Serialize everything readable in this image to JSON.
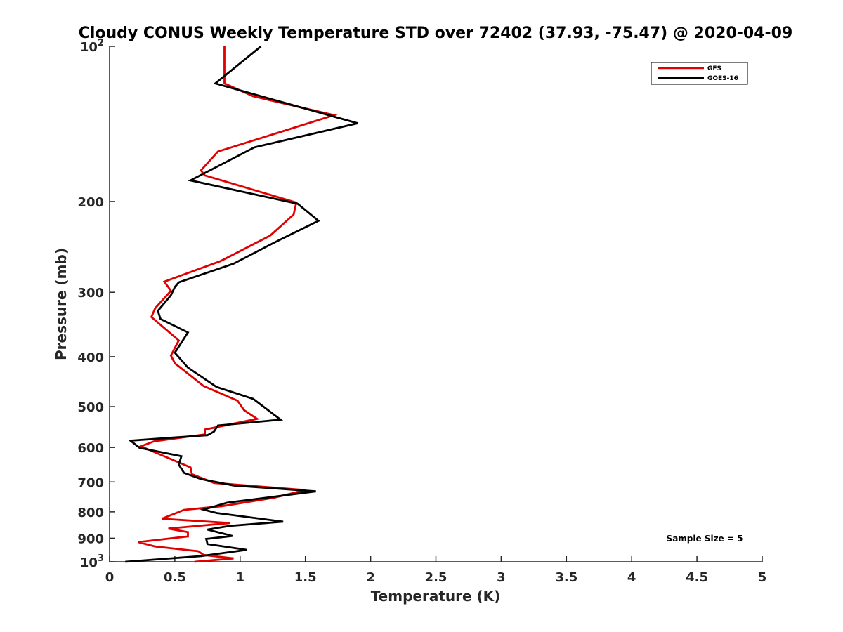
{
  "chart_data": {
    "type": "line",
    "title": "Cloudy CONUS Weekly Temperature STD over 72402 (37.93, -75.47) @ 2020-04-09",
    "xlabel": "Temperature (K)",
    "ylabel": "Pressure (mb)",
    "xlim": [
      0,
      5
    ],
    "ylim": [
      100,
      1000
    ],
    "y_scale": "log",
    "y_reversed": true,
    "grid": false,
    "legend_position": "top-right",
    "x_ticks": [
      {
        "value": 0,
        "label": "0"
      },
      {
        "value": 0.5,
        "label": "0.5"
      },
      {
        "value": 1,
        "label": "1"
      },
      {
        "value": 1.5,
        "label": "1.5"
      },
      {
        "value": 2,
        "label": "2"
      },
      {
        "value": 2.5,
        "label": "2.5"
      },
      {
        "value": 3,
        "label": "3"
      },
      {
        "value": 3.5,
        "label": "3.5"
      },
      {
        "value": 4,
        "label": "4"
      },
      {
        "value": 4.5,
        "label": "4.5"
      },
      {
        "value": 5,
        "label": "5"
      }
    ],
    "y_ticks": [
      {
        "value": 100,
        "base": "10",
        "exp": "2"
      },
      {
        "value": 200,
        "label": "200"
      },
      {
        "value": 300,
        "label": "300"
      },
      {
        "value": 400,
        "label": "400"
      },
      {
        "value": 500,
        "label": "500"
      },
      {
        "value": 600,
        "label": "600"
      },
      {
        "value": 700,
        "label": "700"
      },
      {
        "value": 800,
        "label": "800"
      },
      {
        "value": 900,
        "label": "900"
      },
      {
        "value": 1000,
        "base": "10",
        "exp": "3"
      }
    ],
    "annotation": "Sample Size = 5",
    "series": [
      {
        "name": "GFS",
        "color": "#e00000",
        "points": [
          [
            0.88,
            100
          ],
          [
            0.88,
            113
          ],
          [
            0.88,
            118
          ],
          [
            1.1,
            125
          ],
          [
            1.72,
            136
          ],
          [
            0.83,
            160
          ],
          [
            0.7,
            174
          ],
          [
            0.73,
            178
          ],
          [
            1.43,
            201
          ],
          [
            1.41,
            212
          ],
          [
            1.23,
            233
          ],
          [
            0.85,
            261
          ],
          [
            0.42,
            286
          ],
          [
            0.47,
            298
          ],
          [
            0.35,
            322
          ],
          [
            0.32,
            335
          ],
          [
            0.53,
            372
          ],
          [
            0.47,
            398
          ],
          [
            0.5,
            412
          ],
          [
            0.72,
            456
          ],
          [
            0.98,
            487
          ],
          [
            1.03,
            508
          ],
          [
            1.13,
            528
          ],
          [
            0.73,
            554
          ],
          [
            0.73,
            566
          ],
          [
            0.34,
            584
          ],
          [
            0.24,
            597
          ],
          [
            0.62,
            656
          ],
          [
            0.63,
            676
          ],
          [
            0.8,
            703
          ],
          [
            1.5,
            726
          ],
          [
            1.26,
            751
          ],
          [
            0.86,
            780
          ],
          [
            0.57,
            793
          ],
          [
            0.4,
            825
          ],
          [
            0.92,
            841
          ],
          [
            0.45,
            862
          ],
          [
            0.6,
            876
          ],
          [
            0.6,
            893
          ],
          [
            0.22,
            916
          ],
          [
            0.35,
            934
          ],
          [
            0.68,
            954
          ],
          [
            0.72,
            970
          ],
          [
            0.95,
            985
          ],
          [
            0.65,
            1000
          ]
        ]
      },
      {
        "name": "GOES-16",
        "color": "#000000",
        "points": [
          [
            1.16,
            100
          ],
          [
            0.81,
            118
          ],
          [
            1.9,
            141
          ],
          [
            1.11,
            157
          ],
          [
            0.62,
            182
          ],
          [
            1.44,
            202
          ],
          [
            1.6,
            218
          ],
          [
            1.28,
            239
          ],
          [
            0.95,
            264
          ],
          [
            0.53,
            287
          ],
          [
            0.5,
            293
          ],
          [
            0.47,
            304
          ],
          [
            0.37,
            326
          ],
          [
            0.39,
            338
          ],
          [
            0.6,
            359
          ],
          [
            0.5,
            393
          ],
          [
            0.6,
            420
          ],
          [
            0.82,
            458
          ],
          [
            1.1,
            483
          ],
          [
            1.31,
            530
          ],
          [
            0.83,
            544
          ],
          [
            0.8,
            559
          ],
          [
            0.75,
            568
          ],
          [
            0.16,
            582
          ],
          [
            0.23,
            601
          ],
          [
            0.55,
            624
          ],
          [
            0.53,
            648
          ],
          [
            0.57,
            672
          ],
          [
            0.7,
            691
          ],
          [
            0.95,
            711
          ],
          [
            1.58,
            730
          ],
          [
            0.9,
            768
          ],
          [
            0.72,
            792
          ],
          [
            0.82,
            804
          ],
          [
            1.33,
            836
          ],
          [
            0.92,
            852
          ],
          [
            0.75,
            866
          ],
          [
            0.94,
            891
          ],
          [
            0.74,
            903
          ],
          [
            0.75,
            924
          ],
          [
            1.05,
            948
          ],
          [
            0.7,
            975
          ],
          [
            0.12,
            1000
          ]
        ]
      }
    ]
  }
}
